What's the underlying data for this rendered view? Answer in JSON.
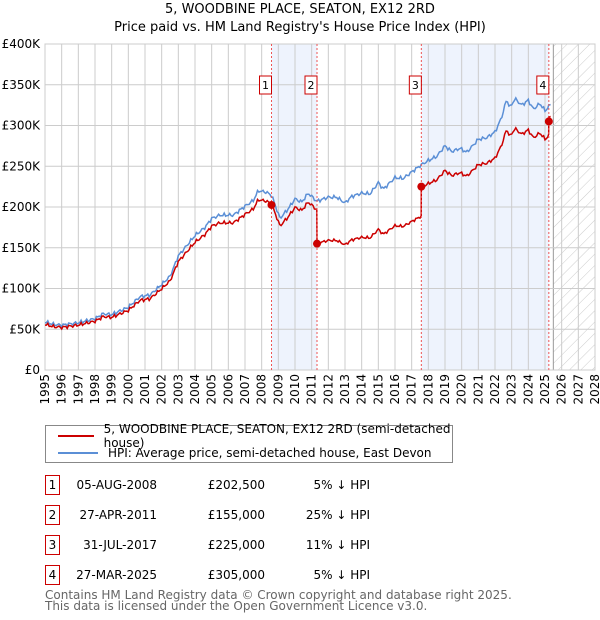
{
  "chart_data": {
    "type": "line",
    "title": "5, WOODBINE PLACE, SEATON, EX12 2RD",
    "subtitle": "Price paid vs. HM Land Registry's House Price Index (HPI)",
    "xlim": [
      1995,
      2028
    ],
    "ylim": [
      0,
      400000
    ],
    "x_ticks": [
      "1995",
      "1996",
      "1997",
      "1998",
      "1999",
      "2000",
      "2001",
      "2002",
      "2003",
      "2004",
      "2005",
      "2006",
      "2007",
      "2008",
      "2009",
      "2010",
      "2011",
      "2012",
      "2013",
      "2014",
      "2015",
      "2016",
      "2017",
      "2018",
      "2019",
      "2020",
      "2021",
      "2022",
      "2023",
      "2024",
      "2025",
      "2026",
      "2027",
      "2028"
    ],
    "y_ticks": [
      {
        "v": 0,
        "l": "£0"
      },
      {
        "v": 50000,
        "l": "£50K"
      },
      {
        "v": 100000,
        "l": "£100K"
      },
      {
        "v": 150000,
        "l": "£150K"
      },
      {
        "v": 200000,
        "l": "£200K"
      },
      {
        "v": 250000,
        "l": "£250K"
      },
      {
        "v": 300000,
        "l": "£300K"
      },
      {
        "v": 350000,
        "l": "£350K"
      },
      {
        "v": 400000,
        "l": "£400K"
      }
    ],
    "grid": true,
    "future_hatch_from": 2025.5,
    "shaded_ranges": [
      [
        2008.59,
        2011.32
      ],
      [
        2017.58,
        2025.23
      ]
    ],
    "series": [
      {
        "name": "HPI: Average price, semi-detached house, East Devon",
        "color": "#5b8fd6",
        "points": [
          [
            1995,
            59000
          ],
          [
            1995.5,
            56000
          ],
          [
            1996,
            55000
          ],
          [
            1997,
            58000
          ],
          [
            1998,
            63000
          ],
          [
            1998.5,
            69000
          ],
          [
            1999,
            68000
          ],
          [
            2000,
            77000
          ],
          [
            2000.7,
            90000
          ],
          [
            2001.3,
            92000
          ],
          [
            2002,
            105000
          ],
          [
            2002.5,
            115000
          ],
          [
            2003,
            140000
          ],
          [
            2003.6,
            155000
          ],
          [
            2004,
            165000
          ],
          [
            2004.6,
            175000
          ],
          [
            2005,
            186000
          ],
          [
            2005.5,
            190000
          ],
          [
            2006.3,
            190000
          ],
          [
            2007,
            201000
          ],
          [
            2007.5,
            208000
          ],
          [
            2007.8,
            220000
          ],
          [
            2008.3,
            218000
          ],
          [
            2008.6,
            214000
          ],
          [
            2009.1,
            186000
          ],
          [
            2009.6,
            198000
          ],
          [
            2010,
            210000
          ],
          [
            2010.4,
            206000
          ],
          [
            2010.8,
            217000
          ],
          [
            2011.3,
            207000
          ],
          [
            2012,
            212000
          ],
          [
            2012.5,
            212000
          ],
          [
            2013,
            205000
          ],
          [
            2013.4,
            213000
          ],
          [
            2014,
            217000
          ],
          [
            2014.5,
            216000
          ],
          [
            2015,
            230000
          ],
          [
            2015.3,
            222000
          ],
          [
            2016,
            236000
          ],
          [
            2016.5,
            235000
          ],
          [
            2017,
            243000
          ],
          [
            2017.6,
            252000
          ],
          [
            2018,
            257000
          ],
          [
            2018.5,
            262000
          ],
          [
            2019,
            275000
          ],
          [
            2019.4,
            268000
          ],
          [
            2019.9,
            272000
          ],
          [
            2020.3,
            267000
          ],
          [
            2021,
            283000
          ],
          [
            2021.5,
            285000
          ],
          [
            2022,
            292000
          ],
          [
            2022.4,
            310000
          ],
          [
            2022.7,
            332000
          ],
          [
            2022.9,
            322000
          ],
          [
            2023.2,
            333000
          ],
          [
            2023.6,
            325000
          ],
          [
            2024,
            331000
          ],
          [
            2024.3,
            320000
          ],
          [
            2024.7,
            327000
          ],
          [
            2025,
            318000
          ],
          [
            2025.4,
            327000
          ]
        ]
      },
      {
        "name": "5, WOODBINE PLACE, SEATON, EX12 2RD (semi-detached house)",
        "color": "#cc0000",
        "ratios": [
          [
            1995,
            0.95
          ],
          [
            2008.59,
            0.95
          ],
          [
            2011.31,
            0.95
          ],
          [
            2011.32,
            0.75
          ],
          [
            2017.57,
            0.75
          ],
          [
            2017.58,
            0.89
          ],
          [
            2025.22,
            0.89
          ],
          [
            2025.23,
            0.955
          ]
        ]
      }
    ],
    "sales": [
      {
        "n": "1",
        "x": 2008.59,
        "price": 202500,
        "date": "05-AUG-2008",
        "price_label": "£202,500",
        "hpi": "5% ↓ HPI"
      },
      {
        "n": "2",
        "x": 2011.32,
        "price": 155000,
        "date": "27-APR-2011",
        "price_label": "£155,000",
        "hpi": "25% ↓ HPI"
      },
      {
        "n": "3",
        "x": 2017.58,
        "price": 225000,
        "date": "31-JUL-2017",
        "price_label": "£225,000",
        "hpi": "11% ↓ HPI"
      },
      {
        "n": "4",
        "x": 2025.23,
        "price": 305000,
        "date": "27-MAR-2025",
        "price_label": "£305,000",
        "hpi": "5% ↓ HPI"
      }
    ],
    "legend": [
      "5, WOODBINE PLACE, SEATON, EX12 2RD (semi-detached house)",
      "HPI: Average price, semi-detached house, East Devon"
    ]
  },
  "footer": [
    "Contains HM Land Registry data © Crown copyright and database right 2025.",
    "This data is licensed under the Open Government Licence v3.0."
  ]
}
